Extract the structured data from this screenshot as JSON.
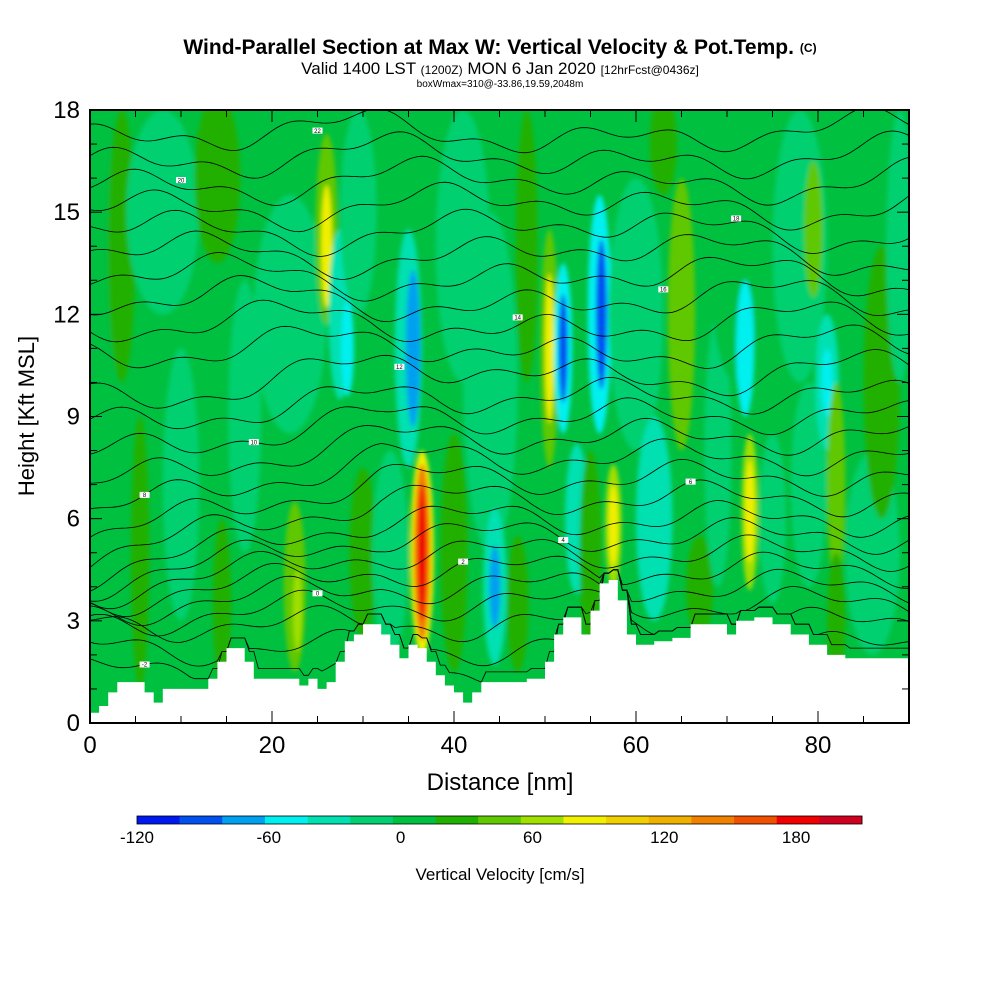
{
  "title": {
    "main": "Wind-Parallel Section at Max W: Vertical Velocity & Pot.Temp.",
    "main_suffix": "(C)",
    "valid_lead": "Valid 1400 LST",
    "valid_z": "(1200Z)",
    "valid_date": "MON 6 Jan 2020",
    "valid_fcst": "[12hrFcst@0436z]",
    "box_line": "boxWmax=310@-33.86,19.59,2048m"
  },
  "chart_data": {
    "type": "heatmap",
    "xlabel": "Distance [nm]",
    "ylabel": "Height [Kft MSL]",
    "xlim": [
      0,
      90
    ],
    "ylim": [
      0,
      18
    ],
    "xticks": [
      0,
      20,
      40,
      60,
      80
    ],
    "yticks": [
      0,
      3,
      6,
      9,
      12,
      15,
      18
    ],
    "xtick_labels": [
      "0",
      "20",
      "40",
      "60",
      "80"
    ],
    "ytick_labels": [
      "0",
      "3",
      "6",
      "9",
      "12",
      "15",
      "18"
    ],
    "colorbar": {
      "label": "Vertical Velocity [cm/s]",
      "min": -120,
      "max": 210,
      "step": 20,
      "tick_values": [
        -120,
        -60,
        0,
        60,
        120,
        180
      ],
      "tick_labels": [
        "-120",
        "-60",
        "0",
        "60",
        "120",
        "180"
      ],
      "colors": [
        "#0018f0",
        "#0050f0",
        "#00a0f0",
        "#00f0f0",
        "#00e0b0",
        "#00d070",
        "#00c040",
        "#20b000",
        "#60c800",
        "#a0e000",
        "#f0f000",
        "#f0d000",
        "#f0b000",
        "#f08000",
        "#f05000",
        "#f00000",
        "#d00020"
      ]
    },
    "background_color": "#00c040",
    "terrain": [
      [
        0,
        0.3
      ],
      [
        1,
        0.5
      ],
      [
        2,
        0.9
      ],
      [
        3,
        1.2
      ],
      [
        5,
        1.2
      ],
      [
        6,
        0.9
      ],
      [
        7,
        0.6
      ],
      [
        8,
        1.0
      ],
      [
        10,
        1.0
      ],
      [
        12,
        1.0
      ],
      [
        13,
        1.3
      ],
      [
        14,
        1.8
      ],
      [
        15,
        2.2
      ],
      [
        16,
        2.2
      ],
      [
        17,
        1.8
      ],
      [
        18,
        1.3
      ],
      [
        20,
        1.3
      ],
      [
        22,
        1.3
      ],
      [
        23,
        1.1
      ],
      [
        24,
        1.3
      ],
      [
        25,
        1.0
      ],
      [
        26,
        1.2
      ],
      [
        27,
        1.8
      ],
      [
        28,
        2.4
      ],
      [
        29,
        2.6
      ],
      [
        30,
        2.9
      ],
      [
        31,
        2.9
      ],
      [
        32,
        2.6
      ],
      [
        33,
        2.3
      ],
      [
        34,
        1.9
      ],
      [
        35,
        2.3
      ],
      [
        36,
        2.2
      ],
      [
        37,
        1.8
      ],
      [
        38,
        1.4
      ],
      [
        39,
        1.1
      ],
      [
        40,
        0.9
      ],
      [
        41,
        0.6
      ],
      [
        42,
        0.9
      ],
      [
        43,
        1.2
      ],
      [
        46,
        1.2
      ],
      [
        48,
        1.3
      ],
      [
        50,
        1.8
      ],
      [
        51,
        2.6
      ],
      [
        52,
        3.1
      ],
      [
        53,
        3.1
      ],
      [
        54,
        2.6
      ],
      [
        55,
        3.3
      ],
      [
        56,
        4.1
      ],
      [
        57,
        4.2
      ],
      [
        58,
        3.6
      ],
      [
        59,
        2.6
      ],
      [
        60,
        2.3
      ],
      [
        62,
        2.4
      ],
      [
        64,
        2.5
      ],
      [
        66,
        2.9
      ],
      [
        68,
        2.9
      ],
      [
        70,
        2.6
      ],
      [
        71,
        3.0
      ],
      [
        73,
        3.1
      ],
      [
        75,
        2.9
      ],
      [
        77,
        2.6
      ],
      [
        79,
        2.3
      ],
      [
        81,
        2.0
      ],
      [
        83,
        1.9
      ],
      [
        90,
        1.9
      ]
    ],
    "regions": [
      {
        "x": 1.5,
        "y": 9,
        "rx": 1.2,
        "ry": 9,
        "v": 10
      },
      {
        "x": 3.5,
        "y": 14,
        "rx": 1.5,
        "ry": 4,
        "v": 30
      },
      {
        "x": 5.5,
        "y": 5,
        "rx": 1.0,
        "ry": 4,
        "v": 30
      },
      {
        "x": 8,
        "y": 15,
        "rx": 4,
        "ry": 3,
        "v": -10
      },
      {
        "x": 10,
        "y": 7,
        "rx": 2,
        "ry": 4,
        "v": -10
      },
      {
        "x": 14,
        "y": 16,
        "rx": 2.5,
        "ry": 2.5,
        "v": 20
      },
      {
        "x": 14.5,
        "y": 3.5,
        "rx": 1.0,
        "ry": 2.5,
        "v": 30
      },
      {
        "x": 17,
        "y": 9,
        "rx": 1.8,
        "ry": 4,
        "v": -20
      },
      {
        "x": 22,
        "y": 12,
        "rx": 4,
        "ry": 3.5,
        "v": -20
      },
      {
        "x": 22.5,
        "y": 4,
        "rx": 1.2,
        "ry": 2.5,
        "v": 40
      },
      {
        "x": 22.8,
        "y": 3.3,
        "rx": 0.5,
        "ry": 1.2,
        "v": 70
      },
      {
        "x": 26,
        "y": 14.5,
        "rx": 1.2,
        "ry": 2.8,
        "v": 50
      },
      {
        "x": 26,
        "y": 14.0,
        "rx": 0.6,
        "ry": 1.8,
        "v": 80
      },
      {
        "x": 27.5,
        "y": 12,
        "rx": 1.3,
        "ry": 2.5,
        "v": -30
      },
      {
        "x": 28.3,
        "y": 11,
        "rx": 0.7,
        "ry": 1.4,
        "v": -60
      },
      {
        "x": 29.5,
        "y": 15,
        "rx": 2,
        "ry": 3,
        "v": -20
      },
      {
        "x": 30,
        "y": 5,
        "rx": 1.5,
        "ry": 2.5,
        "v": 30
      },
      {
        "x": 33,
        "y": 5,
        "rx": 2,
        "ry": 3,
        "v": -10
      },
      {
        "x": 35,
        "y": 11,
        "rx": 1.5,
        "ry": 3.5,
        "v": -40
      },
      {
        "x": 35.5,
        "y": 11,
        "rx": 0.8,
        "ry": 2.3,
        "v": -80
      },
      {
        "x": 36.5,
        "y": 5,
        "rx": 1.3,
        "ry": 3,
        "v": 90
      },
      {
        "x": 36.5,
        "y": 5,
        "rx": 0.9,
        "ry": 2.6,
        "v": 140
      },
      {
        "x": 36.5,
        "y": 5,
        "rx": 0.5,
        "ry": 2.0,
        "v": 180
      },
      {
        "x": 40,
        "y": 5,
        "rx": 1.5,
        "ry": 3.5,
        "v": 20
      },
      {
        "x": 41,
        "y": 14,
        "rx": 3,
        "ry": 4,
        "v": -20
      },
      {
        "x": 44,
        "y": 10,
        "rx": 3,
        "ry": 5,
        "v": -10
      },
      {
        "x": 44.5,
        "y": 4,
        "rx": 1.3,
        "ry": 2.3,
        "v": -40
      },
      {
        "x": 44.5,
        "y": 4,
        "rx": 0.6,
        "ry": 1.2,
        "v": -70
      },
      {
        "x": 47,
        "y": 3.5,
        "rx": 1.2,
        "ry": 2,
        "v": 30
      },
      {
        "x": 48,
        "y": 14,
        "rx": 1.2,
        "ry": 4,
        "v": 20
      },
      {
        "x": 50.5,
        "y": 11,
        "rx": 1.0,
        "ry": 3.5,
        "v": 50
      },
      {
        "x": 50.5,
        "y": 11,
        "rx": 0.5,
        "ry": 2.2,
        "v": 80
      },
      {
        "x": 52,
        "y": 11,
        "rx": 1.0,
        "ry": 2.5,
        "v": -50
      },
      {
        "x": 52,
        "y": 11,
        "rx": 0.5,
        "ry": 1.6,
        "v": -90
      },
      {
        "x": 53.5,
        "y": 6,
        "rx": 1.3,
        "ry": 2.2,
        "v": -40
      },
      {
        "x": 55,
        "y": 5,
        "rx": 1.2,
        "ry": 3,
        "v": 20
      },
      {
        "x": 56,
        "y": 12,
        "rx": 1.3,
        "ry": 3.5,
        "v": -50
      },
      {
        "x": 56.2,
        "y": 12,
        "rx": 0.6,
        "ry": 2.2,
        "v": -100
      },
      {
        "x": 57.5,
        "y": 5.8,
        "rx": 0.9,
        "ry": 1.8,
        "v": 60
      },
      {
        "x": 57.5,
        "y": 5.8,
        "rx": 0.5,
        "ry": 1.2,
        "v": 90
      },
      {
        "x": 60,
        "y": 12,
        "rx": 3,
        "ry": 4,
        "v": -10
      },
      {
        "x": 62,
        "y": 6,
        "rx": 2,
        "ry": 3,
        "v": -30
      },
      {
        "x": 63,
        "y": 17,
        "rx": 1.5,
        "ry": 1.5,
        "v": 30
      },
      {
        "x": 65,
        "y": 12,
        "rx": 1.5,
        "ry": 4,
        "v": 40
      },
      {
        "x": 67,
        "y": 4,
        "rx": 1.5,
        "ry": 1.5,
        "v": 20
      },
      {
        "x": 69,
        "y": 8,
        "rx": 1.5,
        "ry": 4,
        "v": -20
      },
      {
        "x": 71,
        "y": 14,
        "rx": 3,
        "ry": 4,
        "v": 10
      },
      {
        "x": 72,
        "y": 11,
        "rx": 1,
        "ry": 2,
        "v": -60
      },
      {
        "x": 72.5,
        "y": 6.2,
        "rx": 0.9,
        "ry": 2.3,
        "v": 60
      },
      {
        "x": 72.5,
        "y": 6.2,
        "rx": 0.5,
        "ry": 1.5,
        "v": 90
      },
      {
        "x": 75,
        "y": 6,
        "rx": 1.5,
        "ry": 2.5,
        "v": -10
      },
      {
        "x": 78,
        "y": 14,
        "rx": 3,
        "ry": 4,
        "v": -10
      },
      {
        "x": 79,
        "y": 7,
        "rx": 2,
        "ry": 3,
        "v": -20
      },
      {
        "x": 79.5,
        "y": 14.5,
        "rx": 1.0,
        "ry": 2,
        "v": 50
      },
      {
        "x": 81,
        "y": 10,
        "rx": 1.3,
        "ry": 2,
        "v": -40
      },
      {
        "x": 81,
        "y": 10,
        "rx": 0.6,
        "ry": 1.0,
        "v": -60
      },
      {
        "x": 82,
        "y": 7,
        "rx": 1.0,
        "ry": 3,
        "v": 40
      },
      {
        "x": 82,
        "y": 3,
        "rx": 1.0,
        "ry": 2,
        "v": 30
      },
      {
        "x": 86,
        "y": 5,
        "rx": 3,
        "ry": 3,
        "v": -10
      },
      {
        "x": 87,
        "y": 10,
        "rx": 2,
        "ry": 4,
        "v": 20
      },
      {
        "x": 89,
        "y": 14,
        "rx": 1.5,
        "ry": 4,
        "v": -20
      }
    ],
    "isentropes": [
      {
        "base": 1.5,
        "label": "-2"
      },
      {
        "base": 2.2,
        "label": ""
      },
      {
        "base": 2.9,
        "label": ""
      },
      {
        "base": 3.5,
        "label": "0"
      },
      {
        "base": 4.0,
        "label": ""
      },
      {
        "base": 4.5,
        "label": "2"
      },
      {
        "base": 5.0,
        "label": ""
      },
      {
        "base": 5.5,
        "label": "4"
      },
      {
        "base": 6.0,
        "label": ""
      },
      {
        "base": 6.6,
        "label": "6"
      },
      {
        "base": 7.2,
        "label": ""
      },
      {
        "base": 7.8,
        "label": "8"
      },
      {
        "base": 8.4,
        "label": ""
      },
      {
        "base": 9.0,
        "label": "10"
      },
      {
        "base": 9.6,
        "label": ""
      },
      {
        "base": 10.3,
        "label": "12"
      },
      {
        "base": 11.0,
        "label": ""
      },
      {
        "base": 11.7,
        "label": "14"
      },
      {
        "base": 12.4,
        "label": ""
      },
      {
        "base": 13.1,
        "label": "16"
      },
      {
        "base": 13.8,
        "label": ""
      },
      {
        "base": 14.5,
        "label": "18"
      },
      {
        "base": 15.2,
        "label": ""
      },
      {
        "base": 15.9,
        "label": "20"
      },
      {
        "base": 16.6,
        "label": ""
      },
      {
        "base": 17.3,
        "label": "22"
      }
    ],
    "label_positions": [
      6,
      10,
      18,
      25,
      34,
      41,
      47,
      52,
      63,
      66,
      71
    ]
  }
}
